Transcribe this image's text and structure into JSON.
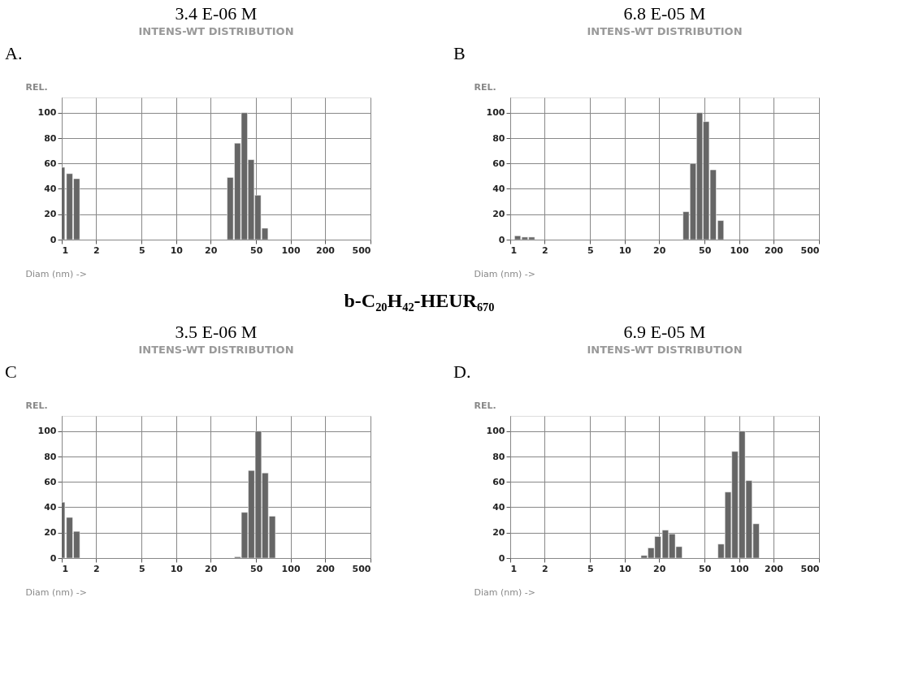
{
  "chart_data": [
    {
      "type": "bar",
      "title": "3.4 E-06 M",
      "subtitle": "INTENS-WT DISTRIBUTION",
      "xlabel": "Diam (nm) ->",
      "ylabel": "REL.",
      "annotations": [
        "A."
      ],
      "log": "x",
      "grid": true,
      "color": "#666666",
      "xlim": [
        1,
        500
      ],
      "xticks": [
        1,
        2,
        5,
        10,
        20,
        50,
        100,
        200,
        500
      ],
      "ylim": [
        0,
        112
      ],
      "yticks": [
        0,
        20,
        40,
        60,
        80,
        100
      ],
      "x": [
        1.0,
        1.17,
        1.35,
        29.7,
        34.4,
        39.5,
        45.2,
        51.8,
        59.7
      ],
      "values": [
        57,
        52,
        48,
        49,
        76,
        100,
        63,
        35,
        9
      ]
    },
    {
      "type": "bar",
      "title": "6.8 E-05 M",
      "subtitle": "INTENS-WT DISTRIBUTION",
      "xlabel": "Diam (nm) ->",
      "ylabel": "REL.",
      "annotations": [
        "B"
      ],
      "log": "x",
      "grid": true,
      "color": "#666666",
      "xlim": [
        1,
        500
      ],
      "xticks": [
        1,
        2,
        5,
        10,
        20,
        50,
        100,
        200,
        500
      ],
      "ylim": [
        0,
        112
      ],
      "yticks": [
        0,
        20,
        40,
        60,
        80,
        100
      ],
      "x": [
        1.16,
        1.34,
        1.54,
        34.4,
        39.6,
        45.2,
        51.6,
        59.4,
        69.1
      ],
      "values": [
        3,
        2,
        2,
        22,
        60,
        100,
        93,
        55,
        15
      ]
    },
    {
      "type": "bar",
      "title": "3.5 E-06 M",
      "subtitle": "INTENS-WT DISTRIBUTION",
      "xlabel": "Diam (nm) ->",
      "ylabel": "REL.",
      "annotations": [
        "b-C₂₀H₄₂-HEUR₆₇₀",
        "C"
      ],
      "log": "x",
      "grid": true,
      "color": "#666666",
      "xlim": [
        1,
        500
      ],
      "xticks": [
        1,
        2,
        5,
        10,
        20,
        50,
        100,
        200,
        500
      ],
      "ylim": [
        0,
        112
      ],
      "yticks": [
        0,
        20,
        40,
        60,
        80,
        100
      ],
      "x": [
        1.0,
        1.17,
        1.35,
        34.5,
        39.6,
        45.5,
        52.3,
        60.0,
        69.2
      ],
      "values": [
        44,
        32,
        21,
        1,
        36,
        69,
        100,
        67,
        33
      ]
    },
    {
      "type": "bar",
      "title": "6.9 E-05 M",
      "subtitle": "INTENS-WT DISTRIBUTION",
      "xlabel": "Diam (nm) ->",
      "ylabel": "REL.",
      "annotations": [
        "D."
      ],
      "log": "x",
      "grid": true,
      "color": "#666666",
      "xlim": [
        1,
        500
      ],
      "xticks": [
        1,
        2,
        5,
        10,
        20,
        50,
        100,
        200,
        500
      ],
      "ylim": [
        0,
        112
      ],
      "yticks": [
        0,
        20,
        40,
        60,
        80,
        100
      ],
      "x": [
        14.8,
        17.0,
        19.5,
        22.7,
        26.0,
        29.9,
        69.6,
        80.1,
        92.0,
        106.2,
        122.2,
        141.0
      ],
      "values": [
        2,
        8,
        17,
        22,
        19,
        9,
        11,
        52,
        84,
        100,
        61,
        27
      ]
    }
  ]
}
